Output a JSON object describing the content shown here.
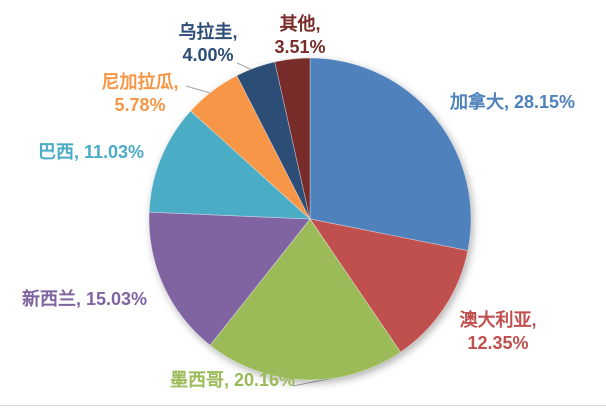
{
  "chart_data": {
    "type": "pie",
    "title": "",
    "legend": "none",
    "start_angle_deg": 0,
    "direction": "clockwise",
    "data_labels": "outside, category name + percent, text colored to match slice",
    "background_color": "#FFFFFF",
    "leader_line_color": "#A6A6A6",
    "bottom_border_color": "#D9D9D9",
    "slices": [
      {
        "key": "canada",
        "label": "加拿大",
        "value": 28.15,
        "color": "#4F81BD",
        "label_lines": [
          "加拿大, 28.15%"
        ]
      },
      {
        "key": "australia",
        "label": "澳大利亚",
        "value": 12.35,
        "color": "#C0504D",
        "label_lines": [
          "澳大利亚,",
          "12.35%"
        ]
      },
      {
        "key": "mexico",
        "label": "墨西哥",
        "value": 20.16,
        "color": "#9BBB59",
        "label_lines": [
          "墨西哥, 20.16%"
        ]
      },
      {
        "key": "new-zealand",
        "label": "新西兰",
        "value": 15.03,
        "color": "#8064A2",
        "label_lines": [
          "新西兰, 15.03%"
        ]
      },
      {
        "key": "brazil",
        "label": "巴西",
        "value": 11.03,
        "color": "#4BACC6",
        "label_lines": [
          "巴西, 11.03%"
        ]
      },
      {
        "key": "nicaragua",
        "label": "尼加拉瓜",
        "value": 5.78,
        "color": "#F79646",
        "label_lines": [
          "尼加拉瓜,",
          "5.78%"
        ]
      },
      {
        "key": "uruguay",
        "label": "乌拉圭",
        "value": 4.0,
        "color": "#2C4D75",
        "label_lines": [
          "乌拉圭,",
          "4.00%"
        ]
      },
      {
        "key": "other",
        "label": "其他",
        "value": 3.51,
        "color": "#772C2A",
        "label_lines": [
          "其他,",
          "3.51%"
        ]
      }
    ]
  }
}
